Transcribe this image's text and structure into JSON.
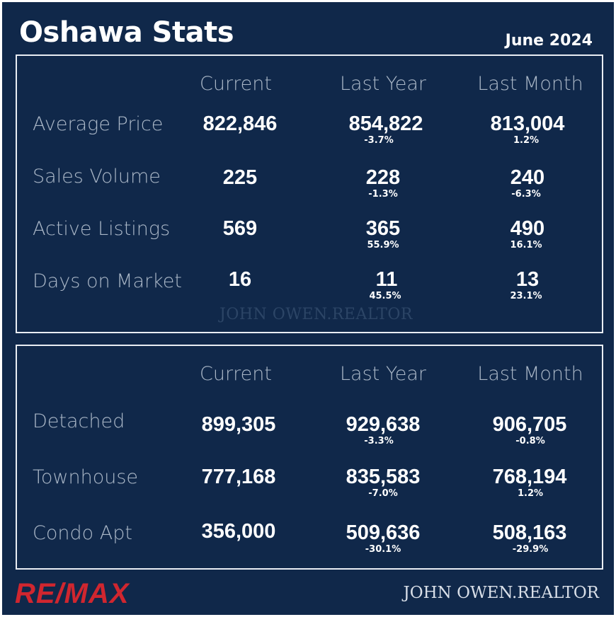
{
  "header": {
    "title": "Oshawa Stats",
    "date": "June 2024"
  },
  "summary": {
    "columns": [
      "Current",
      "Last Year",
      "Last Month"
    ],
    "rows": [
      {
        "label": "Average Price",
        "current": "822,846",
        "last_year": "854,822",
        "last_year_change": "-3.7%",
        "last_month": "813,004",
        "last_month_change": "1.2%"
      },
      {
        "label": "Sales Volume",
        "current": "225",
        "last_year": "228",
        "last_year_change": "-1.3%",
        "last_month": "240",
        "last_month_change": "-6.3%"
      },
      {
        "label": "Active Listings",
        "current": "569",
        "last_year": "365",
        "last_year_change": "55.9%",
        "last_month": "490",
        "last_month_change": "16.1%"
      },
      {
        "label": "Days on Market",
        "current": "16",
        "last_year": "11",
        "last_year_change": "45.5%",
        "last_month": "13",
        "last_month_change": "23.1%"
      }
    ],
    "watermark": "JOHN OWEN.REALTOR"
  },
  "property_types": {
    "columns": [
      "Current",
      "Last Year",
      "Last Month"
    ],
    "rows": [
      {
        "label": "Detached",
        "current": "899,305",
        "last_year": "929,638",
        "last_year_change": "-3.3%",
        "last_month": "906,705",
        "last_month_change": "-0.8%"
      },
      {
        "label": "Townhouse",
        "current": "777,168",
        "last_year": "835,583",
        "last_year_change": "-7.0%",
        "last_month": "768,194",
        "last_month_change": "1.2%"
      },
      {
        "label": "Condo Apt",
        "current": "356,000",
        "last_year": "509,636",
        "last_year_change": "-30.1%",
        "last_month": "508,163",
        "last_month_change": "-29.9%"
      }
    ]
  },
  "footer": {
    "brand_logo": "RE/MAX",
    "signature": "JOHN OWEN.REALTOR",
    "brand_color": "#d0262f",
    "background_color": "#10284a"
  }
}
